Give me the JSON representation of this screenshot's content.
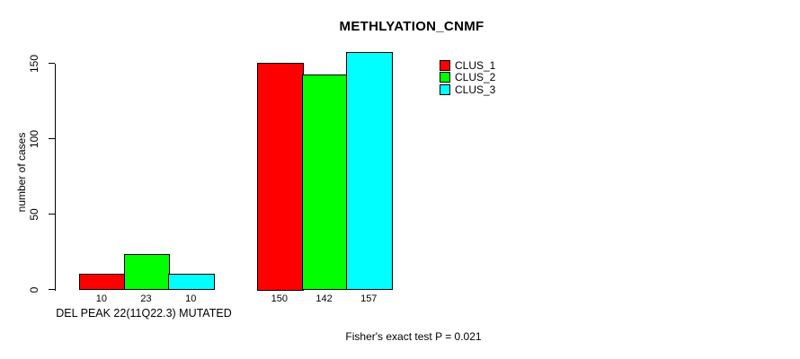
{
  "chart_data": {
    "type": "bar",
    "title": "METHLYATION_CNMF",
    "ylabel": "number of cases",
    "ylim": [
      0,
      150
    ],
    "yticks": [
      0,
      50,
      100,
      150
    ],
    "grid": false,
    "legend_position": "top-right",
    "groups": [
      {
        "label": "DEL PEAK 22(11Q22.3) MUTATED"
      },
      {
        "label": ""
      }
    ],
    "series": [
      {
        "name": "CLUS_1",
        "color": "#ff0000",
        "values": [
          10,
          150
        ]
      },
      {
        "name": "CLUS_2",
        "color": "#00ff00",
        "values": [
          23,
          142
        ]
      },
      {
        "name": "CLUS_3",
        "color": "#00ffff",
        "values": [
          10,
          157
        ]
      }
    ],
    "bar_value_labels": [
      [
        10,
        23,
        10
      ],
      [
        150,
        142,
        157
      ]
    ],
    "annotation": "Fisher's exact test P = 0.021"
  }
}
